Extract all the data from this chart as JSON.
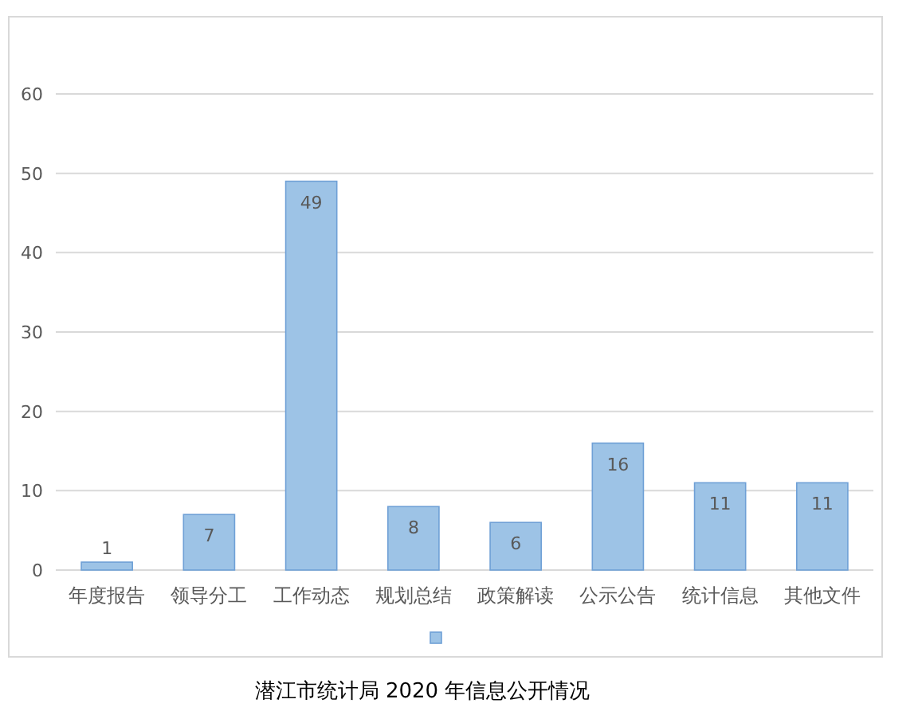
{
  "chart_data": {
    "type": "bar",
    "title": "潜江市统计局 2020 年信息公开情况",
    "categories": [
      "年度报告",
      "领导分工",
      "工作动态",
      "规划总结",
      "政策解读",
      "公示公告",
      "统计信息",
      "其他文件"
    ],
    "series": [
      {
        "color": "#9dc3e6",
        "values": [
          1,
          7,
          49,
          8,
          6,
          16,
          11,
          11
        ]
      }
    ],
    "ylim": [
      0,
      60
    ],
    "yticks": [
      0,
      10,
      20,
      30,
      40,
      50,
      60
    ],
    "grid": "y",
    "data_labels": true
  }
}
